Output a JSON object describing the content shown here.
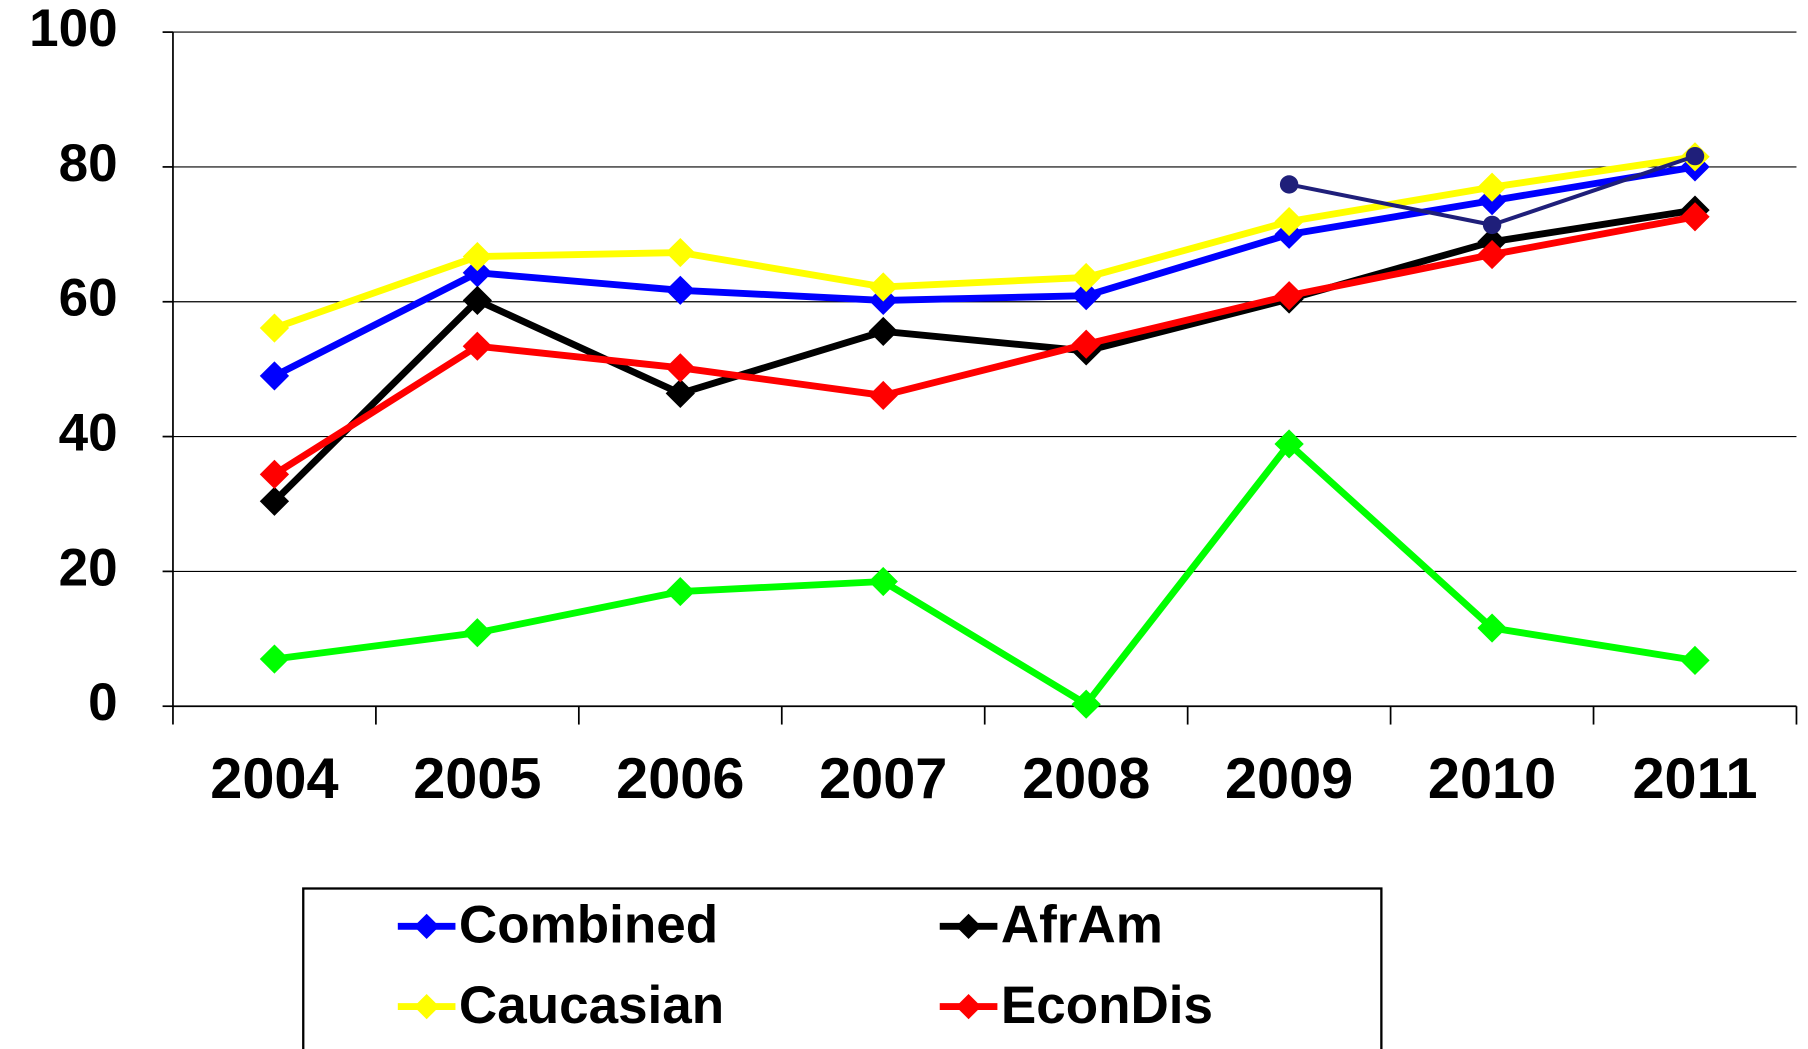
{
  "chart_data": {
    "type": "line",
    "categories": [
      "2004",
      "2005",
      "2006",
      "2007",
      "2008",
      "2009",
      "2010",
      "2011"
    ],
    "ylim": [
      0,
      100
    ],
    "yticks": [
      0,
      20,
      40,
      60,
      80,
      100
    ],
    "grid": true,
    "legend": "bottom",
    "series": [
      {
        "name": "Combined",
        "color": "#0000ff",
        "marker": "diamond",
        "values": [
          49,
          64.3,
          61.7,
          60.2,
          60.9,
          70,
          75,
          80
        ]
      },
      {
        "name": "AfrAm",
        "color": "#000000",
        "marker": "diamond",
        "values": [
          30.4,
          60.2,
          46.4,
          55.6,
          52.7,
          60.4,
          68.9,
          73.6
        ]
      },
      {
        "name": "Caucasian",
        "color": "#ffff00",
        "marker": "diamond",
        "values": [
          56.1,
          66.7,
          67.3,
          62.2,
          63.6,
          71.9,
          77,
          81.5
        ]
      },
      {
        "name": "EconDis",
        "color": "#ff0000",
        "marker": "diamond",
        "values": [
          34.4,
          53.4,
          50.2,
          46.1,
          53.7,
          60.9,
          67,
          72.6
        ]
      },
      {
        "color": "#00ff00",
        "marker": "diamond",
        "values": [
          7,
          10.9,
          17,
          18.5,
          0.3,
          38.9,
          11.6,
          6.8
        ]
      },
      {
        "color": "#1f1f7a",
        "marker": "circle",
        "values": [
          null,
          null,
          null,
          null,
          null,
          77.4,
          71.4,
          81.6
        ]
      }
    ]
  }
}
